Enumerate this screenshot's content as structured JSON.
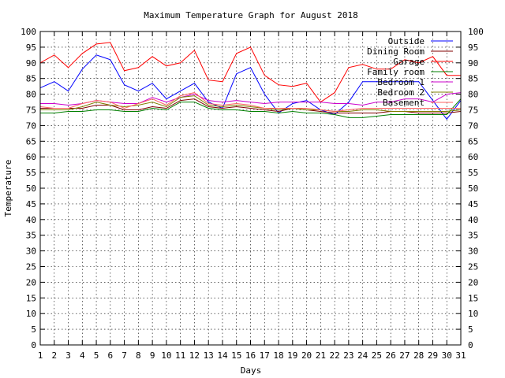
{
  "chart_data": {
    "type": "line",
    "title": "Maximum Temperature Graph for August 2018",
    "xlabel": "Days",
    "ylabel": "Temperature",
    "xlim": [
      1,
      31
    ],
    "ylim": [
      0,
      100
    ],
    "x_ticks": [
      1,
      2,
      3,
      4,
      5,
      6,
      7,
      8,
      9,
      10,
      11,
      12,
      13,
      14,
      15,
      16,
      17,
      18,
      19,
      20,
      21,
      22,
      23,
      24,
      25,
      26,
      27,
      28,
      29,
      30,
      31
    ],
    "y_ticks": [
      0,
      5,
      10,
      15,
      20,
      25,
      30,
      35,
      40,
      45,
      50,
      55,
      60,
      65,
      70,
      75,
      80,
      85,
      90,
      95,
      100
    ],
    "grid": true,
    "legend_position": "top-right",
    "x": [
      1,
      2,
      3,
      4,
      5,
      6,
      7,
      8,
      9,
      10,
      11,
      12,
      13,
      14,
      15,
      16,
      17,
      18,
      19,
      20,
      21,
      22,
      23,
      24,
      25,
      26,
      27,
      28,
      29,
      30,
      31
    ],
    "series": [
      {
        "name": "Outside",
        "color": "#0000ff",
        "values": [
          82,
          84,
          81,
          88,
          92.5,
          91,
          83,
          81,
          83.5,
          78.5,
          81,
          83.5,
          77.5,
          75.5,
          86.5,
          88.5,
          80,
          74,
          77,
          78,
          75,
          73.5,
          77.5,
          84,
          84,
          84,
          84,
          84,
          78,
          72,
          78
        ]
      },
      {
        "name": "Dining Room",
        "color": "#800000",
        "values": [
          75.5,
          75.5,
          75.5,
          75.5,
          76.5,
          76.5,
          75,
          75,
          76,
          75.5,
          78,
          78.5,
          76,
          75.5,
          76,
          75.5,
          75,
          74.5,
          75.5,
          75,
          74.5,
          74,
          74,
          74,
          74,
          74.5,
          74.5,
          74,
          74,
          74,
          74.5
        ]
      },
      {
        "name": "Garage",
        "color": "#ff0000",
        "values": [
          90,
          92.5,
          88.5,
          93,
          96,
          96.5,
          87.5,
          88.5,
          92,
          89,
          90,
          94,
          84.5,
          84,
          93,
          95,
          86,
          83,
          82.5,
          83.5,
          77.5,
          80.5,
          88.5,
          89.5,
          88,
          88,
          91,
          90,
          92,
          86,
          86
        ]
      },
      {
        "name": "Family room",
        "color": "#008000",
        "values": [
          74,
          74,
          74.5,
          74.5,
          75,
          75,
          74.5,
          74.5,
          75.5,
          75,
          77.5,
          77.5,
          75.5,
          75,
          75,
          74.5,
          74.5,
          74,
          74.5,
          74,
          74,
          73.5,
          72.5,
          72.5,
          73,
          73.5,
          73.5,
          73.5,
          73.5,
          73.5,
          78.5
        ]
      },
      {
        "name": "Bedroom 1",
        "color": "#cc00cc",
        "values": [
          77,
          77,
          76.5,
          77,
          78,
          77.5,
          77,
          77,
          79,
          77.5,
          79,
          80,
          78,
          77.5,
          78,
          77.5,
          77,
          77.5,
          77.5,
          77.5,
          77.5,
          77,
          77,
          76.5,
          77.5,
          77.5,
          78.5,
          78.5,
          77.5,
          80,
          80.5
        ]
      },
      {
        "name": "Bedroom 2",
        "color": "#808000",
        "values": [
          75,
          75,
          75,
          76,
          77.5,
          76.5,
          76,
          76.5,
          77.5,
          76,
          79,
          79.5,
          76.5,
          76,
          76.5,
          76,
          75.5,
          75,
          75.5,
          75,
          75,
          74.5,
          74.5,
          75,
          75,
          74.5,
          74.5,
          74.5,
          74.5,
          74.5,
          75
        ]
      },
      {
        "name": "Basement",
        "color": "#ff6060",
        "values": [
          76,
          75.5,
          75.5,
          77,
          78,
          77.5,
          75.5,
          77,
          78.5,
          76.5,
          79.5,
          80.5,
          77,
          76.5,
          77,
          76.5,
          75.5,
          75.5,
          75.5,
          75.5,
          75,
          74.5,
          75,
          75.5,
          75.5,
          75.5,
          75.5,
          75.5,
          75.5,
          75.5,
          75.5
        ]
      }
    ]
  }
}
